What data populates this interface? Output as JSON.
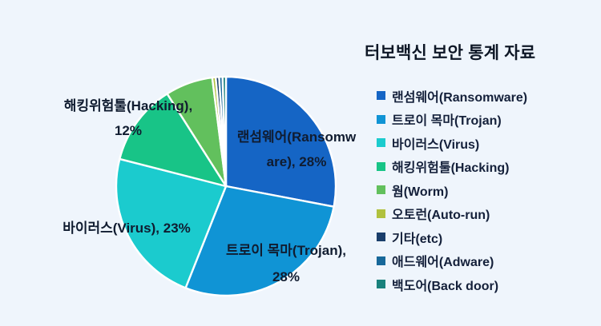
{
  "title": "터보백신 보안 통계 자료",
  "colors": {
    "background": "#eff5fc",
    "title_text": "#0e1726",
    "label_text": "#101c30",
    "slice_border": "#ffffff"
  },
  "chart_data": {
    "type": "pie",
    "title": "터보백신 보안 통계 자료",
    "legend_position": "right",
    "start_angle_deg": 0,
    "direction": "clockwise",
    "series": [
      {
        "name": "랜섬웨어(Ransomware)",
        "value": 28,
        "color": "#1565c5"
      },
      {
        "name": "트로이 목마(Trojan)",
        "value": 28,
        "color": "#1094d5"
      },
      {
        "name": "바이러스(Virus)",
        "value": 23,
        "color": "#1bcbce"
      },
      {
        "name": "해킹위험툴(Hacking)",
        "value": 12,
        "color": "#18c487"
      },
      {
        "name": "웜(Worm)",
        "value": 7,
        "color": "#62c05d"
      },
      {
        "name": "오토런(Auto-run)",
        "value": 0.5,
        "color": "#b0c13e"
      },
      {
        "name": "기타(etc)",
        "value": 0.5,
        "color": "#1a3e6b"
      },
      {
        "name": "애드웨어(Adware)",
        "value": 0.5,
        "color": "#17689a"
      },
      {
        "name": "백도어(Back door)",
        "value": 0.5,
        "color": "#19817c"
      }
    ],
    "data_labels": {
      "ransomware": {
        "slice": "랜섬웨어(Ransomware)",
        "lines": [
          "랜섬웨어(Ransomw",
          "are), 28%"
        ]
      },
      "trojan": {
        "slice": "트로이 목마(Trojan)",
        "lines": [
          "트로이 목마(Trojan),",
          "28%"
        ]
      },
      "virus": {
        "slice": "바이러스(Virus)",
        "lines": [
          "바이러스(Virus), 23%"
        ]
      },
      "hacking": {
        "slice": "해킹위험툴(Hacking)",
        "lines": [
          "해킹위험툴(Hacking),",
          "12%"
        ]
      }
    }
  },
  "legend": {
    "items": [
      "랜섬웨어(Ransomware)",
      "트로이 목마(Trojan)",
      "바이러스(Virus)",
      "해킹위험툴(Hacking)",
      "웜(Worm)",
      "오토런(Auto-run)",
      "기타(etc)",
      "애드웨어(Adware)",
      "백도어(Back door)"
    ]
  }
}
